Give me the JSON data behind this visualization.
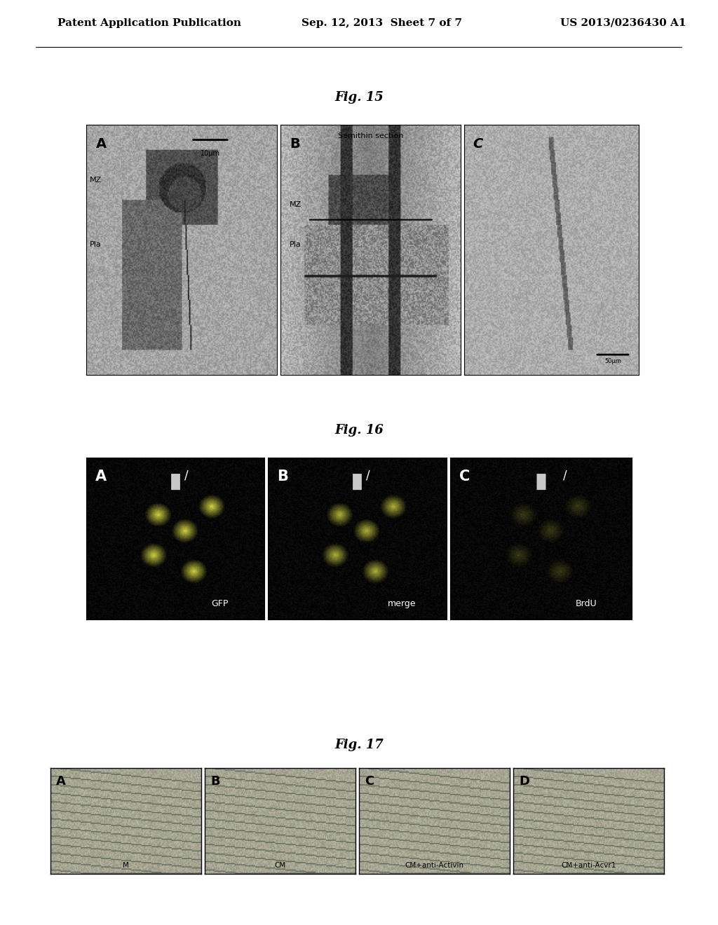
{
  "header_left": "Patent Application Publication",
  "header_mid": "Sep. 12, 2013  Sheet 7 of 7",
  "header_right": "US 2013/0236430 A1",
  "fig15_title": "Fig. 15",
  "fig16_title": "Fig. 16",
  "fig17_title": "Fig. 17",
  "fig15_labels": [
    "A",
    "B",
    "C"
  ],
  "fig15_sublabels": [
    "Semithin section"
  ],
  "fig15_text_left_A": [
    "Pla",
    "MZ"
  ],
  "fig15_text_left_B": [
    "Pla",
    "MZ"
  ],
  "fig15_scale_A": "10μm",
  "fig15_scale_C": "50μm",
  "fig16_labels": [
    "A",
    "B",
    "C"
  ],
  "fig16_sublabels": [
    "GFP",
    "merge",
    "BrdU"
  ],
  "fig17_labels": [
    "A",
    "B",
    "C",
    "D"
  ],
  "fig17_sublabels": [
    "M",
    "CM",
    "CM+anti-Activin",
    "CM+anti-Acvr1"
  ],
  "bg_color": "#ffffff",
  "header_fontsize": 11,
  "title_fontsize": 13,
  "label_fontsize": 14
}
